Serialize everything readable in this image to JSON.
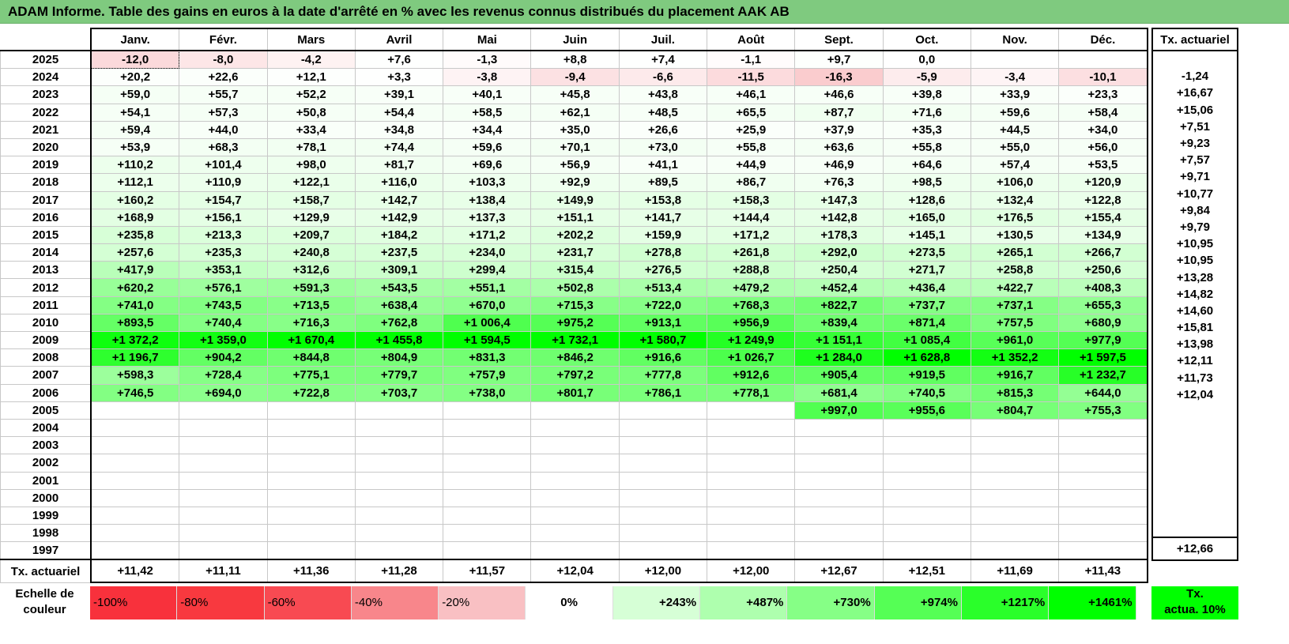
{
  "title": "ADAM Informe. Table des gains en euros à la date d'arrêté en % avec les revenus connus distribués du placement AAK AB",
  "months": [
    "Janv.",
    "Févr.",
    "Mars",
    "Avril",
    "Mai",
    "Juin",
    "Juil.",
    "Août",
    "Sept.",
    "Oct.",
    "Nov.",
    "Déc."
  ],
  "tx_header": "Tx. actuariel",
  "rows": [
    {
      "year": "2025",
      "values": [
        "-12,0",
        "-8,0",
        "-4,2",
        "+7,6",
        "-1,3",
        "+8,8",
        "+7,4",
        "-1,1",
        "+9,7",
        "0,0",
        null,
        null
      ],
      "tx": null
    },
    {
      "year": "2024",
      "values": [
        "+20,2",
        "+22,6",
        "+12,1",
        "+3,3",
        "-3,8",
        "-9,4",
        "-6,6",
        "-11,5",
        "-16,3",
        "-5,9",
        "-3,4",
        "-10,1"
      ],
      "tx": "-1,24"
    },
    {
      "year": "2023",
      "values": [
        "+59,0",
        "+55,7",
        "+52,2",
        "+39,1",
        "+40,1",
        "+45,8",
        "+43,8",
        "+46,1",
        "+46,6",
        "+39,8",
        "+33,9",
        "+23,3"
      ],
      "tx": "+16,67"
    },
    {
      "year": "2022",
      "values": [
        "+54,1",
        "+57,3",
        "+50,8",
        "+54,4",
        "+58,5",
        "+62,1",
        "+48,5",
        "+65,5",
        "+87,7",
        "+71,6",
        "+59,6",
        "+58,4"
      ],
      "tx": "+15,06"
    },
    {
      "year": "2021",
      "values": [
        "+59,4",
        "+44,0",
        "+33,4",
        "+34,8",
        "+34,4",
        "+35,0",
        "+26,6",
        "+25,9",
        "+37,9",
        "+35,3",
        "+44,5",
        "+34,0"
      ],
      "tx": "+7,51"
    },
    {
      "year": "2020",
      "values": [
        "+53,9",
        "+68,3",
        "+78,1",
        "+74,4",
        "+59,6",
        "+70,1",
        "+73,0",
        "+55,8",
        "+63,6",
        "+55,8",
        "+55,0",
        "+56,0"
      ],
      "tx": "+9,23"
    },
    {
      "year": "2019",
      "values": [
        "+110,2",
        "+101,4",
        "+98,0",
        "+81,7",
        "+69,6",
        "+56,9",
        "+41,1",
        "+44,9",
        "+46,9",
        "+64,6",
        "+57,4",
        "+53,5"
      ],
      "tx": "+7,57"
    },
    {
      "year": "2018",
      "values": [
        "+112,1",
        "+110,9",
        "+122,1",
        "+116,0",
        "+103,3",
        "+92,9",
        "+89,5",
        "+86,7",
        "+76,3",
        "+98,5",
        "+106,0",
        "+120,9"
      ],
      "tx": "+9,71"
    },
    {
      "year": "2017",
      "values": [
        "+160,2",
        "+154,7",
        "+158,7",
        "+142,7",
        "+138,4",
        "+149,9",
        "+153,8",
        "+158,3",
        "+147,3",
        "+128,6",
        "+132,4",
        "+122,8"
      ],
      "tx": "+10,77"
    },
    {
      "year": "2016",
      "values": [
        "+168,9",
        "+156,1",
        "+129,9",
        "+142,9",
        "+137,3",
        "+151,1",
        "+141,7",
        "+144,4",
        "+142,8",
        "+165,0",
        "+176,5",
        "+155,4"
      ],
      "tx": "+9,84"
    },
    {
      "year": "2015",
      "values": [
        "+235,8",
        "+213,3",
        "+209,7",
        "+184,2",
        "+171,2",
        "+202,2",
        "+159,9",
        "+171,2",
        "+178,3",
        "+145,1",
        "+130,5",
        "+134,9"
      ],
      "tx": "+9,79"
    },
    {
      "year": "2014",
      "values": [
        "+257,6",
        "+235,3",
        "+240,8",
        "+237,5",
        "+234,0",
        "+231,7",
        "+278,8",
        "+261,8",
        "+292,0",
        "+273,5",
        "+265,1",
        "+266,7"
      ],
      "tx": "+10,95"
    },
    {
      "year": "2013",
      "values": [
        "+417,9",
        "+353,1",
        "+312,6",
        "+309,1",
        "+299,4",
        "+315,4",
        "+276,5",
        "+288,8",
        "+250,4",
        "+271,7",
        "+258,8",
        "+250,6"
      ],
      "tx": "+10,95"
    },
    {
      "year": "2012",
      "values": [
        "+620,2",
        "+576,1",
        "+591,3",
        "+543,5",
        "+551,1",
        "+502,8",
        "+513,4",
        "+479,2",
        "+452,4",
        "+436,4",
        "+422,7",
        "+408,3"
      ],
      "tx": "+13,28"
    },
    {
      "year": "2011",
      "values": [
        "+741,0",
        "+743,5",
        "+713,5",
        "+638,4",
        "+670,0",
        "+715,3",
        "+722,0",
        "+768,3",
        "+822,7",
        "+737,7",
        "+737,1",
        "+655,3"
      ],
      "tx": "+14,82"
    },
    {
      "year": "2010",
      "values": [
        "+893,5",
        "+740,4",
        "+716,3",
        "+762,8",
        "+1 006,4",
        "+975,2",
        "+913,1",
        "+956,9",
        "+839,4",
        "+871,4",
        "+757,5",
        "+680,9"
      ],
      "tx": "+14,60"
    },
    {
      "year": "2009",
      "values": [
        "+1 372,2",
        "+1 359,0",
        "+1 670,4",
        "+1 455,8",
        "+1 594,5",
        "+1 732,1",
        "+1 580,7",
        "+1 249,9",
        "+1 151,1",
        "+1 085,4",
        "+961,0",
        "+977,9"
      ],
      "tx": "+15,81"
    },
    {
      "year": "2008",
      "values": [
        "+1 196,7",
        "+904,2",
        "+844,8",
        "+804,9",
        "+831,3",
        "+846,2",
        "+916,6",
        "+1 026,7",
        "+1 284,0",
        "+1 628,8",
        "+1 352,2",
        "+1 597,5"
      ],
      "tx": "+13,98"
    },
    {
      "year": "2007",
      "values": [
        "+598,3",
        "+728,4",
        "+775,1",
        "+779,7",
        "+757,9",
        "+797,2",
        "+777,8",
        "+912,6",
        "+905,4",
        "+919,5",
        "+916,7",
        "+1 232,7"
      ],
      "tx": "+12,11"
    },
    {
      "year": "2006",
      "values": [
        "+746,5",
        "+694,0",
        "+722,8",
        "+703,7",
        "+738,0",
        "+801,7",
        "+786,1",
        "+778,1",
        "+681,4",
        "+740,5",
        "+815,3",
        "+644,0"
      ],
      "tx": "+11,73"
    },
    {
      "year": "2005",
      "values": [
        null,
        null,
        null,
        null,
        null,
        null,
        null,
        null,
        "+997,0",
        "+955,6",
        "+804,7",
        "+755,3"
      ],
      "tx": "+12,04"
    },
    {
      "year": "2004",
      "values": [
        null,
        null,
        null,
        null,
        null,
        null,
        null,
        null,
        null,
        null,
        null,
        null
      ],
      "tx": null
    },
    {
      "year": "2003",
      "values": [
        null,
        null,
        null,
        null,
        null,
        null,
        null,
        null,
        null,
        null,
        null,
        null
      ],
      "tx": null
    },
    {
      "year": "2002",
      "values": [
        null,
        null,
        null,
        null,
        null,
        null,
        null,
        null,
        null,
        null,
        null,
        null
      ],
      "tx": null
    },
    {
      "year": "2001",
      "values": [
        null,
        null,
        null,
        null,
        null,
        null,
        null,
        null,
        null,
        null,
        null,
        null
      ],
      "tx": null
    },
    {
      "year": "2000",
      "values": [
        null,
        null,
        null,
        null,
        null,
        null,
        null,
        null,
        null,
        null,
        null,
        null
      ],
      "tx": null
    },
    {
      "year": "1999",
      "values": [
        null,
        null,
        null,
        null,
        null,
        null,
        null,
        null,
        null,
        null,
        null,
        null
      ],
      "tx": null
    },
    {
      "year": "1998",
      "values": [
        null,
        null,
        null,
        null,
        null,
        null,
        null,
        null,
        null,
        null,
        null,
        null
      ],
      "tx": null
    },
    {
      "year": "1997",
      "values": [
        null,
        null,
        null,
        null,
        null,
        null,
        null,
        null,
        null,
        null,
        null,
        null
      ],
      "tx": null
    }
  ],
  "totals": {
    "label": "Tx. actuariel",
    "values": [
      "+11,42",
      "+11,11",
      "+11,36",
      "+11,28",
      "+11,57",
      "+12,04",
      "+12,00",
      "+12,00",
      "+12,67",
      "+12,51",
      "+11,69",
      "+11,43"
    ],
    "tx": "+12,66"
  },
  "legend": {
    "label_line1": "Echelle de",
    "label_line2": "couleur",
    "items": [
      {
        "label": "-100%",
        "value": -100,
        "color": "#f8313c"
      },
      {
        "label": "-80%",
        "value": -80,
        "color": "#f8393f"
      },
      {
        "label": "-60%",
        "value": -60,
        "color": "#f84a52"
      },
      {
        "label": "-40%",
        "value": -40,
        "color": "#f8868b"
      },
      {
        "label": "-20%",
        "value": -20,
        "color": "#f9c0c3"
      },
      {
        "label": "0%",
        "value": 0,
        "color": "#ffffff"
      },
      {
        "label": "+243%",
        "value": 243,
        "color": "#d6ffd6"
      },
      {
        "label": "+487%",
        "value": 487,
        "color": "#aeffae"
      },
      {
        "label": "+730%",
        "value": 730,
        "color": "#86ff86"
      },
      {
        "label": "+974%",
        "value": 974,
        "color": "#55ff55"
      },
      {
        "label": "+1217%",
        "value": 1217,
        "color": "#2aff2a"
      },
      {
        "label": "+1461%",
        "value": 1461,
        "color": "#00ff00"
      }
    ],
    "tx_line1": "Tx.",
    "tx_line2": "actua. 10%",
    "tx_color": "#00ff00"
  },
  "colors": {
    "title_bar": "#7fca7f"
  }
}
